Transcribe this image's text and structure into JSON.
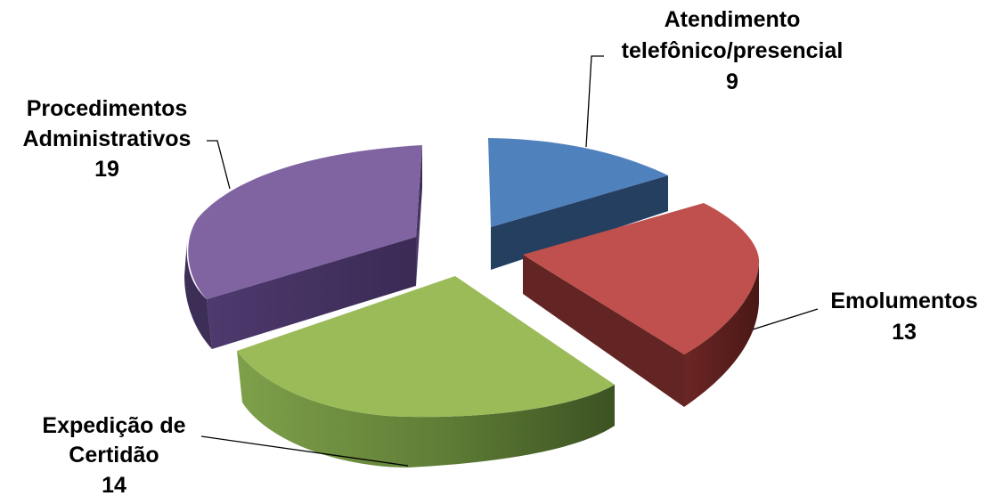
{
  "chart_data": {
    "type": "pie",
    "style": "3d-exploded",
    "slices": [
      {
        "label_lines": [
          "Atendimento",
          "telefônico/presencial"
        ],
        "value": 9,
        "color": "#4f81bd"
      },
      {
        "label_lines": [
          "Emolumentos"
        ],
        "value": 13,
        "color": "#c0504d"
      },
      {
        "label_lines": [
          "Expedição de",
          "Certidão"
        ],
        "value": 14,
        "color": "#9bbb59"
      },
      {
        "label_lines": [
          "Procedimentos",
          "Administrativos"
        ],
        "value": 19,
        "color": "#8064a2"
      }
    ],
    "legend": "none"
  }
}
